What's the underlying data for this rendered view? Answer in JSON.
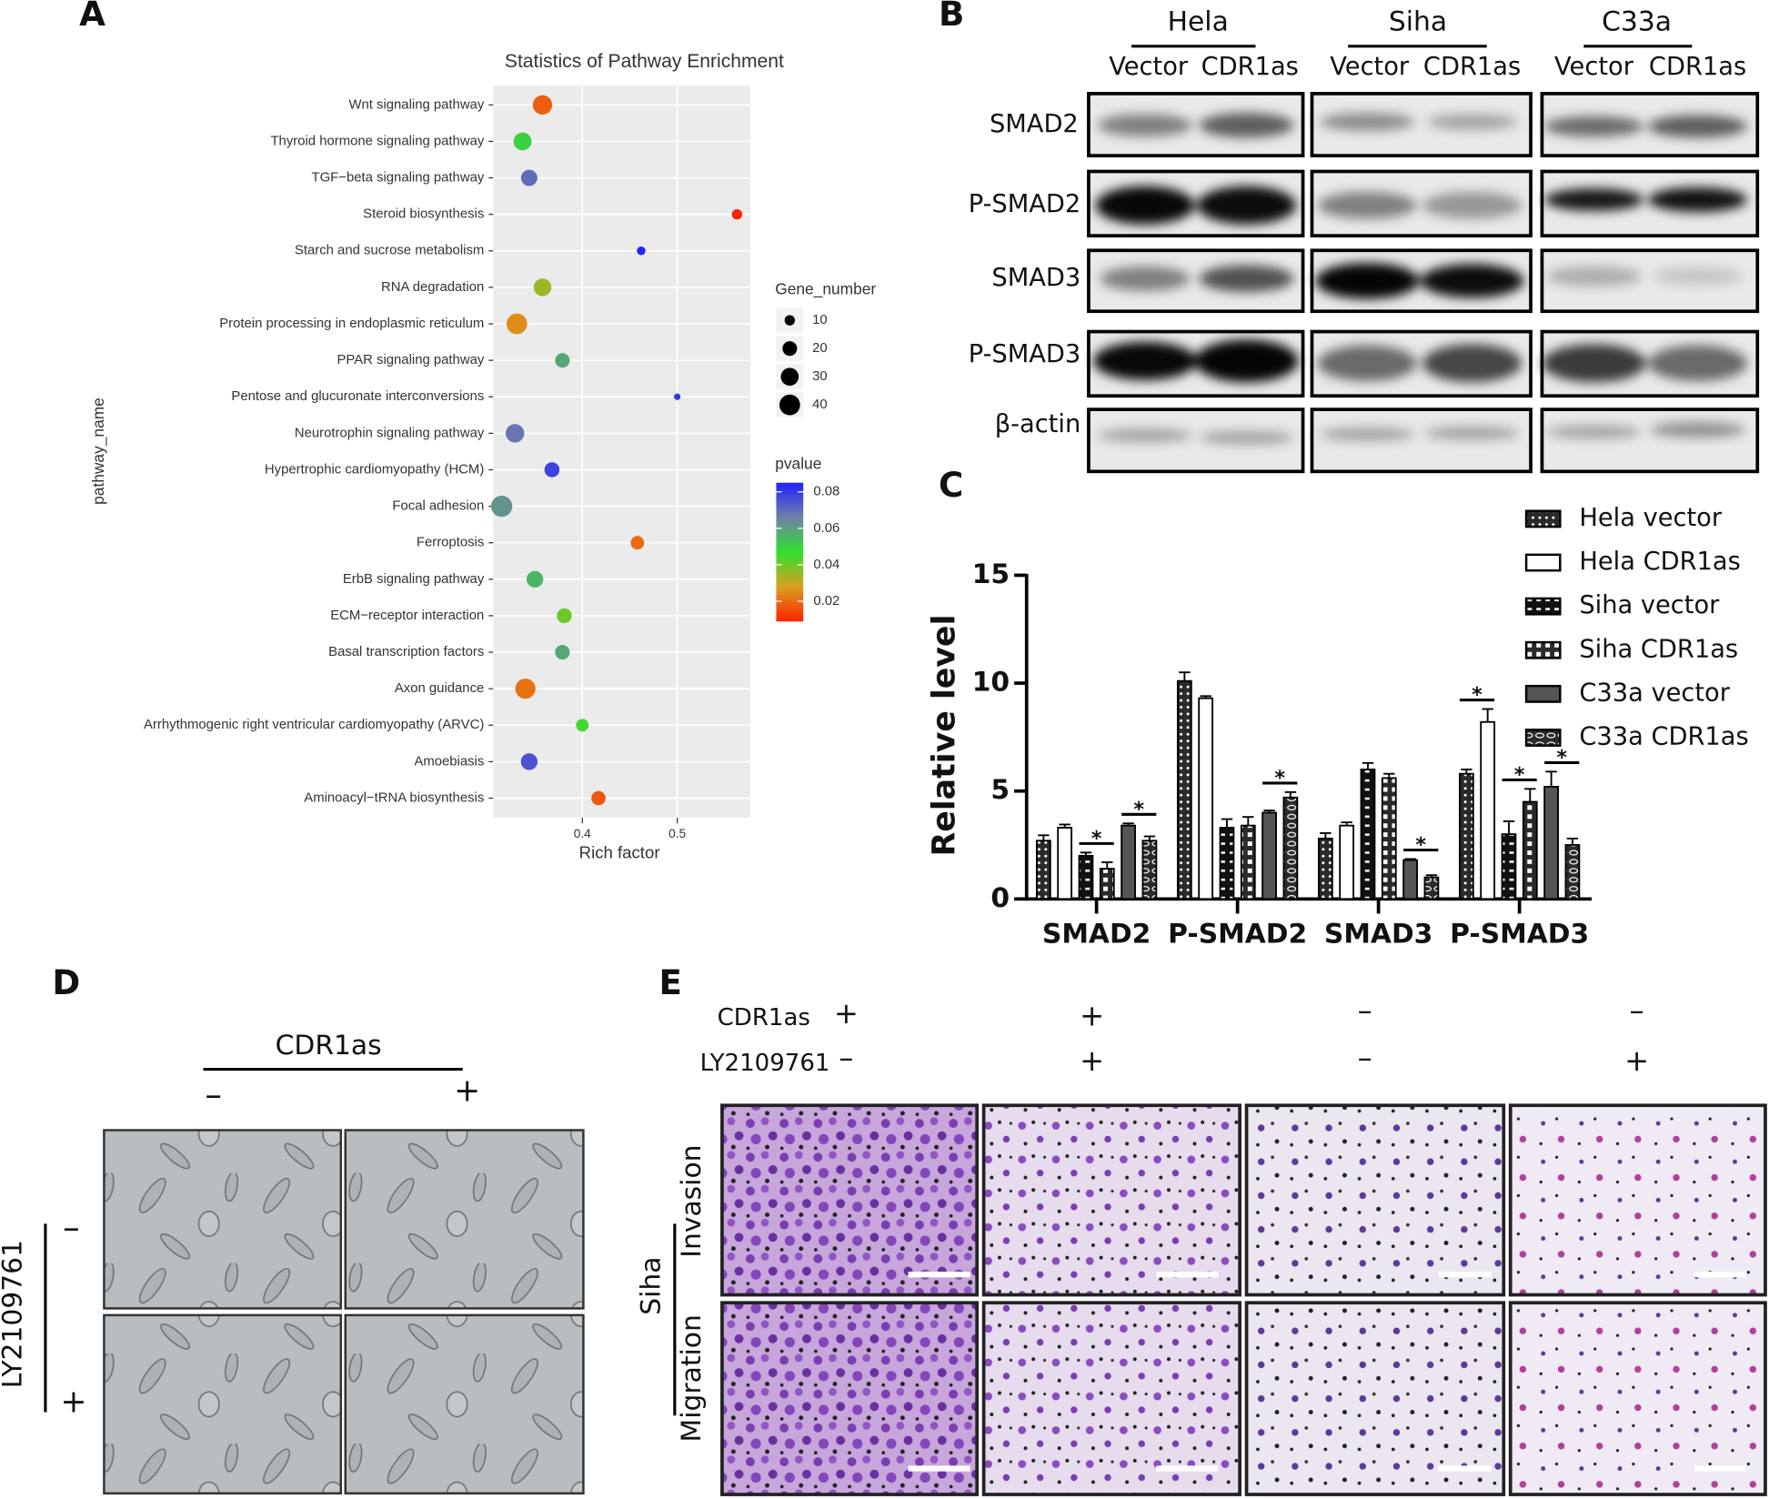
{
  "panel_labels": [
    "A",
    "B",
    "C",
    "D",
    "E"
  ],
  "chart_data": [
    {
      "type": "dot",
      "title": "Statistics of Pathway Enrichment",
      "x_label": "Rich factor",
      "y_label": "pathway_name",
      "categories": [
        "Wnt signaling pathway",
        "Thyroid hormone signaling pathway",
        "TGF−beta signaling pathway",
        "Steroid biosynthesis",
        "Starch and sucrose metabolism",
        "RNA degradation",
        "Protein processing in endoplasmic reticulum",
        "PPAR signaling pathway",
        "Pentose and glucuronate interconversions",
        "Neurotrophin signaling pathway",
        "Hypertrophic cardiomyopathy (HCM)",
        "Focal adhesion",
        "Ferroptosis",
        "ErbB signaling pathway",
        "ECM−receptor interaction",
        "Basal transcription factors",
        "Axon guidance",
        "Arrhythmogenic right ventricular cardiomyopathy (ARVC)",
        "Amoebiasis",
        "Aminoacyl−tRNA biosynthesis"
      ],
      "x": [
        0.358,
        0.337,
        0.344,
        0.563,
        0.462,
        0.358,
        0.331,
        0.379,
        0.5,
        0.329,
        0.368,
        0.315,
        0.458,
        0.35,
        0.381,
        0.379,
        0.34,
        0.4,
        0.344,
        0.417
      ],
      "gene_number": [
        35,
        30,
        25,
        10,
        7,
        29,
        40,
        20,
        4,
        32,
        21,
        42,
        17,
        26,
        21,
        20,
        38,
        15,
        26,
        19
      ],
      "pvalue": [
        0.018,
        0.05,
        0.07,
        0.009,
        0.084,
        0.035,
        0.025,
        0.058,
        0.08,
        0.068,
        0.078,
        0.062,
        0.02,
        0.055,
        0.04,
        0.058,
        0.021,
        0.045,
        0.075,
        0.017
      ],
      "xlim": [
        0.306,
        0.577
      ],
      "xticks": [
        0.4,
        0.5
      ],
      "grid": true,
      "size_legend": {
        "title": "Gene_number",
        "values": [
          10,
          20,
          30,
          40
        ]
      },
      "color_legend": {
        "title": "pvalue",
        "lim": [
          0.0089,
          0.085
        ],
        "ticks": [
          0.02,
          0.04,
          0.06,
          0.08
        ],
        "colors": [
          "#ff2200",
          "#d8a020",
          "#30e030",
          "#7080a8",
          "#2020ff"
        ]
      }
    },
    {
      "type": "bar",
      "y_label": "Relative level",
      "categories": [
        "SMAD2",
        "P-SMAD2",
        "SMAD3",
        "P-SMAD3"
      ],
      "ylim": [
        0,
        15
      ],
      "yticks": [
        0,
        5,
        10,
        15
      ],
      "legend": "top-right",
      "series": [
        {
          "name": "Hela vector",
          "color": "#2a2a2a",
          "pattern": "dots",
          "values": [
            2.7,
            10.1,
            2.8,
            5.8
          ],
          "errors": [
            0.25,
            0.4,
            0.25,
            0.2
          ]
        },
        {
          "name": "Hela CDR1as",
          "color": "#ffffff",
          "pattern": "none",
          "values": [
            3.3,
            9.3,
            3.4,
            8.2
          ],
          "errors": [
            0.15,
            0.1,
            0.15,
            0.6
          ]
        },
        {
          "name": "Siha vector",
          "color": "#111111",
          "pattern": "dash",
          "values": [
            2.0,
            3.3,
            6.0,
            3.0
          ],
          "errors": [
            0.15,
            0.4,
            0.3,
            0.6
          ]
        },
        {
          "name": "Siha CDR1as",
          "color": "#2a2a2a",
          "pattern": "squares",
          "values": [
            1.4,
            3.4,
            5.6,
            4.5
          ],
          "errors": [
            0.3,
            0.4,
            0.2,
            0.6
          ]
        },
        {
          "name": "C33a vector",
          "color": "#555555",
          "pattern": "none",
          "values": [
            3.4,
            4.0,
            1.8,
            5.2
          ],
          "errors": [
            0.1,
            0.1,
            0.05,
            0.7
          ]
        },
        {
          "name": "C33a CDR1as",
          "color": "#2a2a2a",
          "pattern": "ovals",
          "values": [
            2.7,
            4.7,
            1.0,
            2.5
          ],
          "errors": [
            0.2,
            0.25,
            0.1,
            0.3
          ]
        }
      ],
      "annotations": [
        {
          "text": "*",
          "category": 0,
          "pair": 1
        },
        {
          "text": "*",
          "category": 0,
          "pair": 2
        },
        {
          "text": "*",
          "category": 1,
          "pair": 2
        },
        {
          "text": "*",
          "category": 2,
          "pair": 2
        },
        {
          "text": "*",
          "category": 3,
          "pair": 0
        },
        {
          "text": "*",
          "category": 3,
          "pair": 1
        },
        {
          "text": "*",
          "category": 3,
          "pair": 2
        }
      ]
    }
  ],
  "western_blot": {
    "groups": [
      {
        "name": "Hela",
        "lanes": [
          "Vector",
          "CDR1as"
        ]
      },
      {
        "name": "Siha",
        "lanes": [
          "Vector",
          "CDR1as"
        ]
      },
      {
        "name": "C33a",
        "lanes": [
          "Vector",
          "CDR1as"
        ]
      }
    ],
    "rows": [
      "SMAD2",
      "P-SMAD2",
      "SMAD3",
      "P-SMAD3",
      "β-actin"
    ]
  },
  "cell_images": {
    "column_header": "CDR1as",
    "columns": [
      "–",
      "+"
    ],
    "row_header": "LY2109761",
    "rows": [
      "–",
      "+"
    ]
  },
  "transwell": {
    "conditions": [
      {
        "label": "CDR1as",
        "values": [
          "+",
          "+",
          "–",
          "–"
        ]
      },
      {
        "label": "LY2109761",
        "values": [
          "–",
          "+",
          "–",
          "+"
        ]
      }
    ],
    "cell_line": "Siha",
    "rows": [
      "Invasion",
      "Migration"
    ]
  }
}
